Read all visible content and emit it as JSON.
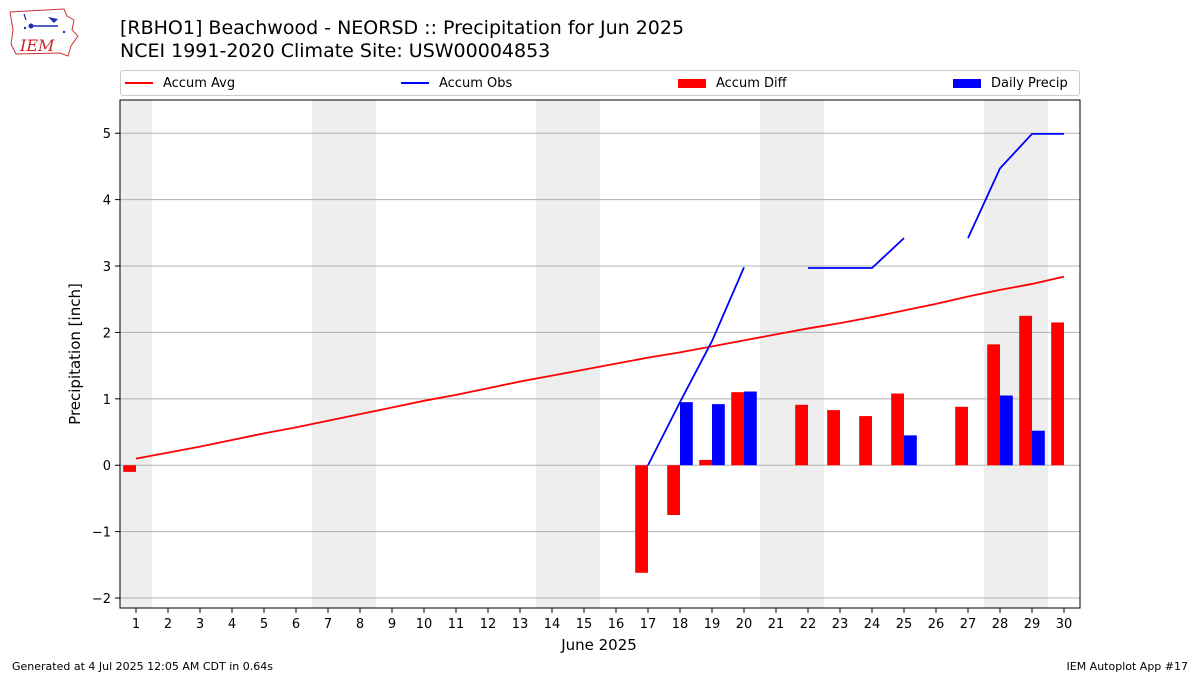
{
  "header": {
    "title_line1": "[RBHO1] Beachwood - NEORSD :: Precipitation for Jun 2025",
    "title_line2": "NCEI 1991-2020 Climate Site: USW00004853",
    "logo_text": "IEM"
  },
  "legend": {
    "items": [
      {
        "label": "Accum Avg",
        "color": "#ff0000",
        "kind": "line"
      },
      {
        "label": "Accum Obs",
        "color": "#0000ff",
        "kind": "line"
      },
      {
        "label": "Accum Diff",
        "color": "#ff0000",
        "kind": "bar"
      },
      {
        "label": "Daily Precip",
        "color": "#0000ff",
        "kind": "bar"
      }
    ]
  },
  "chart_data": {
    "type": "bar",
    "xlabel": "June 2025",
    "ylabel": "Precipitation [inch]",
    "ylim": [
      -2.15,
      5.5
    ],
    "xlim": [
      0.5,
      30.5
    ],
    "yticks": [
      -2,
      -1,
      0,
      1,
      2,
      3,
      4,
      5
    ],
    "ytick_labels": [
      "−2",
      "−1",
      "0",
      "1",
      "2",
      "3",
      "4",
      "5"
    ],
    "categories": [
      "1",
      "2",
      "3",
      "4",
      "5",
      "6",
      "7",
      "8",
      "9",
      "10",
      "11",
      "12",
      "13",
      "14",
      "15",
      "16",
      "17",
      "18",
      "19",
      "20",
      "21",
      "22",
      "23",
      "24",
      "25",
      "26",
      "27",
      "28",
      "29",
      "30"
    ],
    "grid": "horizontal",
    "weekend_shading_days": [
      1,
      7,
      8,
      14,
      15,
      21,
      22,
      28,
      29
    ],
    "series": [
      {
        "name": "Accum Avg",
        "kind": "line",
        "color": "#ff0000",
        "values": [
          0.1,
          0.19,
          0.28,
          0.38,
          0.48,
          0.57,
          0.67,
          0.77,
          0.87,
          0.97,
          1.06,
          1.16,
          1.26,
          1.35,
          1.44,
          1.53,
          1.62,
          1.7,
          1.79,
          1.88,
          1.97,
          2.06,
          2.14,
          2.23,
          2.33,
          2.43,
          2.54,
          2.64,
          2.73,
          2.84
        ]
      },
      {
        "name": "Accum Obs",
        "kind": "line",
        "color": "#0000ff",
        "values": [
          null,
          null,
          null,
          null,
          null,
          null,
          null,
          null,
          null,
          null,
          null,
          null,
          null,
          null,
          null,
          null,
          0.0,
          0.95,
          1.87,
          2.98,
          null,
          2.97,
          2.97,
          2.97,
          3.42,
          null,
          3.42,
          4.47,
          4.99,
          4.99
        ]
      },
      {
        "name": "Accum Diff",
        "kind": "bar",
        "color": "#ff0000",
        "values": [
          -0.1,
          null,
          null,
          null,
          null,
          null,
          null,
          null,
          null,
          null,
          null,
          null,
          null,
          null,
          null,
          null,
          -1.62,
          -0.75,
          0.08,
          1.1,
          null,
          0.91,
          0.83,
          0.74,
          1.08,
          null,
          0.88,
          1.82,
          2.25,
          2.15
        ]
      },
      {
        "name": "Daily Precip",
        "kind": "bar",
        "color": "#0000ff",
        "values": [
          null,
          null,
          null,
          null,
          null,
          null,
          null,
          null,
          null,
          null,
          null,
          null,
          null,
          null,
          null,
          null,
          null,
          0.95,
          0.92,
          1.11,
          null,
          null,
          null,
          null,
          0.45,
          null,
          null,
          1.05,
          0.52,
          null
        ]
      }
    ]
  },
  "footer": {
    "left": "Generated at 4 Jul 2025 12:05 AM CDT in 0.64s",
    "right": "IEM Autoplot App #17"
  }
}
